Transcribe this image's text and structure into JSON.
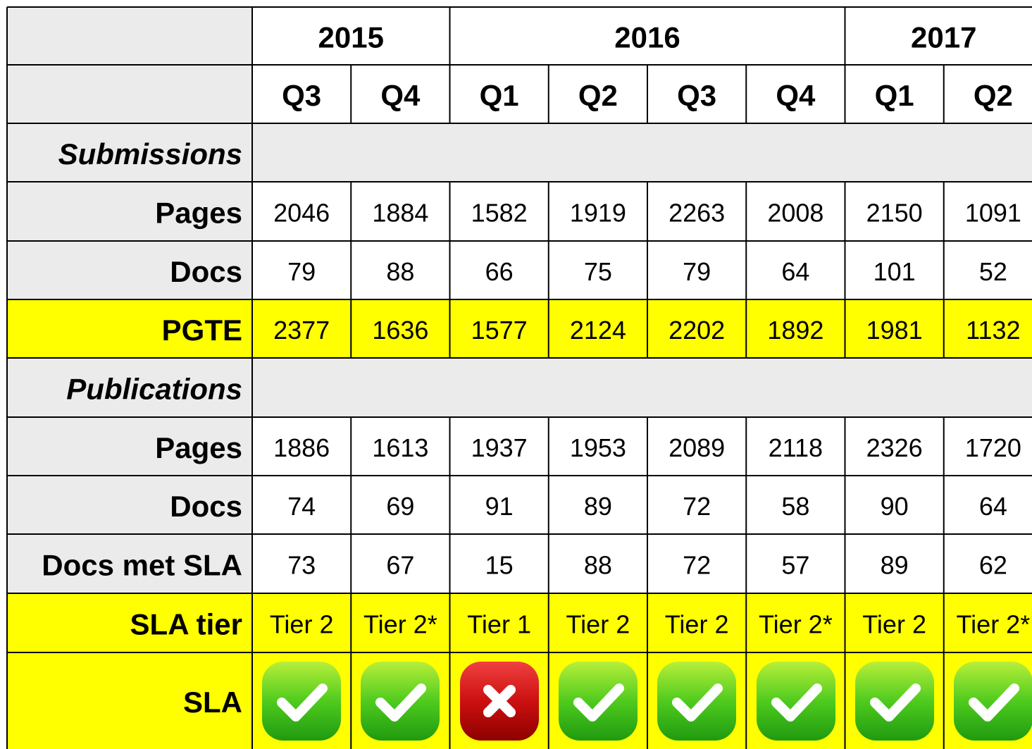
{
  "table": {
    "years": [
      "2015",
      "2016",
      "2017"
    ],
    "quarters": [
      "Q3",
      "Q4",
      "Q1",
      "Q2",
      "Q3",
      "Q4",
      "Q1",
      "Q2"
    ],
    "sections": [
      {
        "title": "Submissions",
        "rows": [
          {
            "label": "Pages",
            "values": [
              2046,
              1884,
              1582,
              1919,
              2263,
              2008,
              2150,
              1091
            ]
          },
          {
            "label": "Docs",
            "values": [
              79,
              88,
              66,
              75,
              79,
              64,
              101,
              52
            ]
          },
          {
            "label": "PGTE",
            "values": [
              2377,
              1636,
              1577,
              2124,
              2202,
              1892,
              1981,
              1132
            ],
            "color": "#ffff00"
          }
        ]
      },
      {
        "title": "Publications",
        "rows": [
          {
            "label": "Pages",
            "values": [
              1886,
              1613,
              1937,
              1953,
              2089,
              2118,
              2326,
              1720
            ]
          },
          {
            "label": "Docs",
            "values": [
              74,
              69,
              91,
              89,
              72,
              58,
              90,
              64
            ]
          },
          {
            "label": "Docs met SLA",
            "values": [
              73,
              67,
              15,
              88,
              72,
              57,
              89,
              62
            ]
          },
          {
            "label": "SLA tier",
            "values": [
              "Tier 2",
              "Tier 2*",
              "Tier 1",
              "Tier 2",
              "Tier 2",
              "Tier 2*",
              "Tier 2",
              "Tier 2*"
            ],
            "color": "#ffff00"
          },
          {
            "label": "SLA",
            "color": "#ffff00"
          }
        ]
      }
    ]
  }
}
